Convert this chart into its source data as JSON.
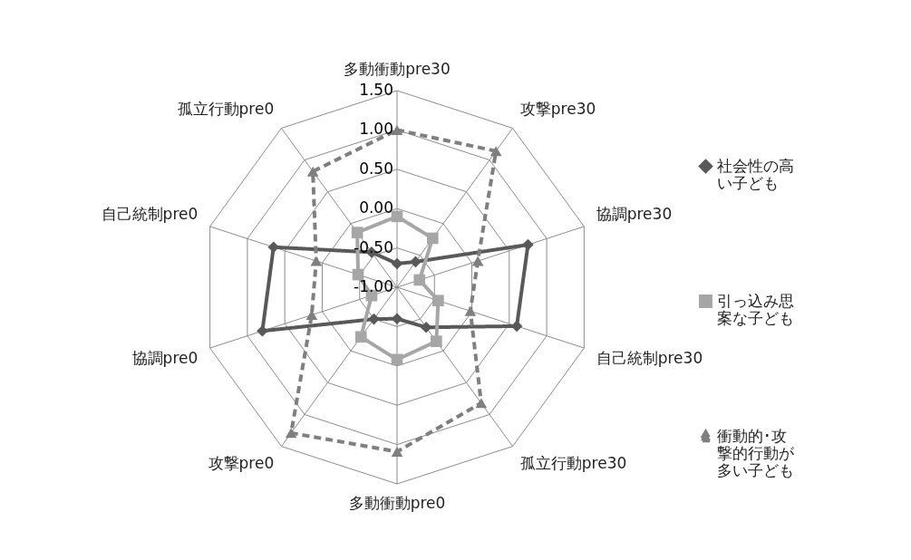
{
  "chart_data": {
    "type": "radar",
    "categories": [
      "多動衝動pre30",
      "攻撃pre30",
      "協調pre30",
      "自己統制pre30",
      "孤立行動pre30",
      "多動衝動pre0",
      "攻撃pre0",
      "協調pre0",
      "自己統制pre0",
      "孤立行動pre0"
    ],
    "ylim": [
      -1,
      1.5
    ],
    "yticks": [
      {
        "value": -1,
        "label": "-1.00"
      },
      {
        "value": -0.5,
        "label": "-0.50"
      },
      {
        "value": 0,
        "label": "0.00"
      },
      {
        "value": 0.5,
        "label": "0.50"
      },
      {
        "value": 1,
        "label": "1.00"
      },
      {
        "value": 1.5,
        "label": "1.50"
      }
    ],
    "grid": true,
    "legend": "right",
    "series": [
      {
        "name": "社会性の高い子ども",
        "color": "#595959",
        "marker": "diamond",
        "line_style": "solid",
        "values": [
          -0.7,
          -0.6,
          0.75,
          0.6,
          -0.37,
          -0.6,
          -0.5,
          0.8,
          0.65,
          -0.45
        ]
      },
      {
        "name": "引っ込み思案な子ども",
        "color": "#a6a6a6",
        "marker": "square",
        "line_style": "solid",
        "values": [
          -0.1,
          -0.23,
          -0.7,
          -0.45,
          -0.15,
          -0.08,
          -0.22,
          -0.66,
          -0.48,
          -0.14
        ]
      },
      {
        "name": "衝動的･攻撃的行動が多い子ども",
        "color": "#7f7f7f",
        "marker": "triangle",
        "line_style": "dashed",
        "values": [
          1.0,
          1.14,
          0.08,
          -0.02,
          0.82,
          1.09,
          1.29,
          0.14,
          0.08,
          0.82
        ]
      }
    ]
  }
}
